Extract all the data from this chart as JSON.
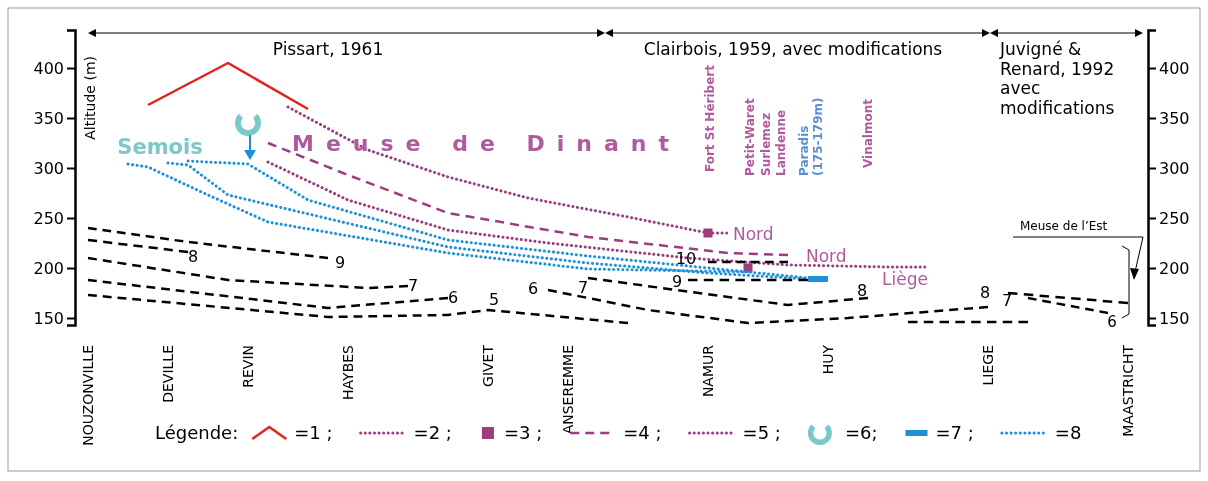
{
  "chart_data": {
    "type": "line",
    "ylabel": "Altitude (m)",
    "legend_title": "Légende:",
    "legend": "bottom",
    "grid": false,
    "categories": [
      "NOUZONVILLE",
      null,
      null,
      null,
      "DEVILLE",
      null,
      null,
      null,
      "REVIN",
      null,
      null,
      null,
      null,
      "HAYBES",
      null,
      null,
      null,
      null,
      null,
      null,
      "GIVET",
      null,
      null,
      null,
      "ANSEREMME",
      null,
      null,
      null,
      null,
      null,
      null,
      "NAMUR",
      null,
      null,
      null,
      null,
      null,
      "HUY",
      null,
      null,
      null,
      null,
      null,
      null,
      null,
      "LIEGE",
      null,
      null,
      null,
      null,
      null,
      null,
      "MAASTRICHT",
      null
    ],
    "ylim": [
      143,
      438
    ],
    "y2lim": [
      143,
      438
    ],
    "yticks": [
      150,
      200,
      250,
      300,
      350,
      400
    ],
    "y2ticks": [
      150,
      200,
      250,
      300,
      350,
      400
    ],
    "series": [
      {
        "name": "=1 ;",
        "color": "#e0241b",
        "line_style": "solid",
        "values": [
          null,
          null,
          null,
          363,
          null,
          null,
          null,
          405,
          null,
          null,
          null,
          359,
          null,
          null,
          null,
          null,
          null,
          null,
          null,
          null,
          null,
          null,
          null,
          null,
          null,
          null,
          null,
          null,
          null,
          null,
          null,
          null,
          null,
          null,
          null,
          null,
          null,
          null,
          null,
          null,
          null,
          null,
          null,
          null,
          null,
          null,
          null,
          null,
          null,
          null,
          null,
          null,
          null,
          null
        ]
      },
      {
        "name": "=2 ;",
        "color": "#9b3d7f",
        "line_style": "dotted",
        "values": [
          null,
          null,
          null,
          null,
          null,
          null,
          null,
          null,
          null,
          null,
          361,
          null,
          null,
          null,
          318,
          null,
          null,
          null,
          291,
          null,
          null,
          null,
          270,
          null,
          null,
          null,
          null,
          251,
          null,
          null,
          null,
          235,
          235,
          null,
          null,
          null,
          null,
          null,
          null,
          null,
          null,
          null,
          null,
          null,
          null,
          null,
          null,
          null,
          null,
          null,
          null,
          null,
          null,
          null
        ]
      },
      {
        "name": "=3 ;",
        "type": "scatter",
        "marker": "square",
        "color": "#9b3d7f",
        "values": [
          null,
          null,
          null,
          null,
          null,
          null,
          null,
          null,
          null,
          null,
          null,
          null,
          null,
          null,
          null,
          null,
          null,
          null,
          null,
          null,
          null,
          null,
          null,
          null,
          null,
          null,
          null,
          null,
          null,
          null,
          null,
          235,
          null,
          200,
          null,
          null,
          null,
          null,
          null,
          null,
          null,
          null,
          null,
          null,
          null,
          null,
          null,
          null,
          null,
          null,
          null,
          null,
          null,
          null
        ]
      },
      {
        "name": "=4 ;",
        "color": "#9b3d7f",
        "line_style": "dashed",
        "values": [
          null,
          null,
          null,
          null,
          null,
          null,
          null,
          null,
          null,
          325,
          null,
          null,
          null,
          293,
          null,
          null,
          null,
          null,
          255,
          null,
          null,
          null,
          null,
          null,
          null,
          231,
          null,
          null,
          null,
          null,
          null,
          null,
          215,
          null,
          null,
          213,
          null,
          null,
          null,
          null,
          null,
          null,
          null,
          null,
          null,
          null,
          null,
          null,
          null,
          null,
          null,
          null,
          null,
          null
        ]
      },
      {
        "name": "=5 ;",
        "color": "#9b3d7f",
        "line_style": "dotted",
        "values": [
          null,
          null,
          null,
          null,
          null,
          null,
          null,
          null,
          null,
          306,
          null,
          null,
          null,
          268,
          null,
          null,
          null,
          null,
          238,
          null,
          null,
          null,
          null,
          225,
          null,
          null,
          null,
          null,
          null,
          null,
          210,
          null,
          null,
          null,
          null,
          203,
          null,
          null,
          null,
          null,
          201,
          null,
          201,
          null,
          null,
          null,
          null,
          null,
          null,
          null,
          null,
          null,
          null,
          null
        ]
      },
      {
        "name": "=6;",
        "type": "scatter",
        "marker": "circle",
        "color": "#7cc8c8",
        "values": [
          null,
          null,
          null,
          null,
          null,
          null,
          null,
          null,
          345,
          null,
          null,
          null,
          null,
          null,
          null,
          null,
          null,
          null,
          null,
          null,
          null,
          null,
          null,
          null,
          null,
          null,
          null,
          null,
          null,
          null,
          null,
          null,
          null,
          null,
          null,
          null,
          null,
          null,
          null,
          null,
          null,
          null,
          null,
          null,
          null,
          null,
          null,
          null,
          null,
          null,
          null,
          null,
          null,
          null
        ]
      },
      {
        "name": "=7 ;",
        "color": "#1e90d8",
        "line_style": "solid",
        "values": [
          null,
          null,
          null,
          null,
          null,
          null,
          null,
          null,
          null,
          null,
          null,
          null,
          null,
          null,
          null,
          null,
          null,
          null,
          null,
          null,
          null,
          null,
          null,
          null,
          null,
          null,
          null,
          null,
          null,
          null,
          null,
          null,
          null,
          null,
          null,
          null,
          189,
          189,
          null,
          null,
          null,
          null,
          null,
          null,
          null,
          null,
          null,
          null,
          null,
          null,
          null,
          null,
          null,
          null
        ]
      },
      {
        "name": "=8",
        "color": "#1e90d8",
        "line_style": "dotted",
        "values": [
          null,
          null,
          null,
          null,
          null,
          307,
          null,
          null,
          304,
          null,
          null,
          268,
          null,
          null,
          null,
          null,
          null,
          null,
          228,
          null,
          null,
          null,
          null,
          null,
          null,
          212,
          null,
          null,
          null,
          null,
          null,
          200,
          null,
          null,
          null,
          null,
          190,
          null,
          null,
          null,
          null,
          null,
          null,
          null,
          null,
          null,
          null,
          null,
          null,
          null,
          null,
          null,
          null,
          null
        ]
      },
      {
        "color": "#1e90d8",
        "line_style": "dotted",
        "values": [
          null,
          null,
          null,
          null,
          305,
          303,
          null,
          273,
          null,
          null,
          null,
          null,
          null,
          null,
          null,
          null,
          null,
          null,
          221,
          null,
          null,
          null,
          null,
          null,
          null,
          205,
          null,
          null,
          null,
          null,
          null,
          195,
          null,
          null,
          null,
          null,
          189,
          null,
          null,
          null,
          null,
          null,
          null,
          null,
          null,
          null,
          null,
          null,
          null,
          null,
          null,
          null,
          null,
          null
        ]
      },
      {
        "color": "#1e90d8",
        "line_style": "dotted",
        "values": [
          null,
          null,
          304,
          301,
          null,
          null,
          273,
          null,
          null,
          246,
          null,
          null,
          null,
          null,
          null,
          null,
          null,
          null,
          215,
          null,
          null,
          null,
          null,
          null,
          null,
          199,
          null,
          null,
          null,
          null,
          null,
          null,
          null,
          196,
          null,
          null,
          null,
          null,
          null,
          null,
          null,
          null,
          null,
          null,
          null,
          null,
          null,
          null,
          null,
          null,
          null,
          null,
          null,
          null
        ]
      },
      {
        "color": "#000000",
        "line_style": "dashed",
        "values": [
          240,
          null,
          null,
          null,
          null,
          226,
          null,
          null,
          null,
          null,
          null,
          null,
          210,
          null,
          null,
          null,
          null,
          null,
          null,
          null,
          null,
          null,
          null,
          null,
          null,
          null,
          null,
          null,
          null,
          null,
          null,
          null,
          null,
          null,
          null,
          null,
          null,
          null,
          null,
          null,
          null,
          null,
          null,
          null,
          null,
          null,
          null,
          null,
          null,
          null,
          null,
          null,
          null,
          null
        ]
      },
      {
        "color": "#000000",
        "line_style": "dashed",
        "values": [
          228,
          null,
          null,
          null,
          null,
          216,
          null,
          null,
          null,
          null,
          null,
          null,
          null,
          null,
          null,
          null,
          null,
          null,
          null,
          null,
          null,
          null,
          null,
          null,
          null,
          null,
          null,
          null,
          null,
          null,
          null,
          null,
          null,
          null,
          null,
          null,
          null,
          null,
          null,
          null,
          null,
          null,
          null,
          null,
          null,
          null,
          null,
          null,
          null,
          null,
          null,
          null,
          null,
          null
        ]
      },
      {
        "color": "#000000",
        "line_style": "dashed",
        "values": [
          210,
          null,
          null,
          null,
          null,
          null,
          null,
          188,
          null,
          null,
          null,
          null,
          null,
          null,
          180,
          null,
          182,
          null,
          null,
          null,
          null,
          null,
          null,
          null,
          null,
          null,
          null,
          null,
          null,
          null,
          null,
          null,
          null,
          null,
          null,
          null,
          null,
          null,
          null,
          null,
          null,
          null,
          null,
          null,
          null,
          null,
          null,
          null,
          null,
          null,
          null,
          null,
          null,
          null
        ]
      },
      {
        "color": "#000000",
        "line_style": "dashed",
        "values": [
          188,
          null,
          null,
          null,
          null,
          null,
          null,
          null,
          null,
          null,
          null,
          null,
          160,
          null,
          null,
          null,
          null,
          null,
          170,
          null,
          null,
          null,
          null,
          null,
          null,
          null,
          null,
          null,
          null,
          null,
          null,
          null,
          null,
          null,
          null,
          null,
          null,
          null,
          null,
          null,
          null,
          null,
          null,
          null,
          null,
          null,
          null,
          null,
          null,
          null,
          null,
          null,
          null,
          null
        ]
      },
      {
        "color": "#000000",
        "line_style": "dashed",
        "values": [
          173,
          null,
          null,
          null,
          null,
          null,
          null,
          null,
          null,
          null,
          null,
          null,
          151,
          null,
          null,
          null,
          null,
          null,
          153,
          null,
          158,
          null,
          null,
          null,
          null,
          null,
          null,
          145,
          null,
          null,
          null,
          null,
          null,
          null,
          null,
          null,
          null,
          null,
          null,
          null,
          null,
          null,
          null,
          null,
          null,
          null,
          null,
          null,
          null,
          null,
          null,
          null,
          null,
          null
        ]
      },
      {
        "color": "#000000",
        "line_style": "dashed",
        "values": [
          null,
          null,
          null,
          null,
          null,
          null,
          null,
          null,
          null,
          null,
          null,
          null,
          null,
          null,
          null,
          null,
          null,
          null,
          null,
          null,
          null,
          null,
          null,
          178,
          null,
          null,
          null,
          null,
          158,
          null,
          null,
          null,
          null,
          145,
          null,
          null,
          null,
          null,
          150,
          null,
          null,
          null,
          null,
          null,
          null,
          161,
          null,
          null,
          null,
          null,
          null,
          null,
          null,
          null
        ]
      },
      {
        "color": "#000000",
        "line_style": "dashed",
        "values": [
          null,
          null,
          null,
          null,
          null,
          null,
          null,
          null,
          null,
          null,
          null,
          null,
          null,
          null,
          null,
          null,
          null,
          null,
          null,
          null,
          null,
          null,
          null,
          null,
          null,
          190,
          null,
          null,
          null,
          null,
          null,
          null,
          171,
          null,
          null,
          163,
          null,
          null,
          null,
          170,
          null,
          null,
          null,
          null,
          null,
          null,
          null,
          null,
          null,
          null,
          null,
          null,
          null,
          null
        ]
      },
      {
        "color": "#000000",
        "line_style": "dashed",
        "values": [
          null,
          null,
          null,
          null,
          null,
          null,
          null,
          null,
          null,
          null,
          null,
          null,
          null,
          null,
          null,
          null,
          null,
          null,
          null,
          null,
          null,
          null,
          null,
          null,
          null,
          null,
          null,
          null,
          null,
          null,
          188,
          null,
          null,
          null,
          null,
          null,
          188,
          null,
          null,
          null,
          null,
          null,
          null,
          null,
          null,
          null,
          null,
          null,
          null,
          null,
          null,
          null,
          null,
          null
        ]
      },
      {
        "color": "#000000",
        "line_style": "dashed",
        "values": [
          null,
          null,
          null,
          null,
          null,
          null,
          null,
          null,
          null,
          null,
          null,
          null,
          null,
          null,
          null,
          null,
          null,
          null,
          null,
          null,
          null,
          null,
          null,
          null,
          null,
          null,
          null,
          null,
          null,
          null,
          null,
          206,
          null,
          null,
          null,
          206,
          null,
          null,
          null,
          null,
          null,
          null,
          null,
          null,
          null,
          null,
          null,
          null,
          null,
          null,
          null,
          null,
          null,
          null
        ]
      },
      {
        "color": "#000000",
        "line_style": "dashed",
        "values": [
          null,
          null,
          null,
          null,
          null,
          null,
          null,
          null,
          null,
          null,
          null,
          null,
          null,
          null,
          null,
          null,
          null,
          null,
          null,
          null,
          null,
          null,
          null,
          null,
          null,
          null,
          null,
          null,
          null,
          null,
          null,
          null,
          null,
          null,
          null,
          null,
          null,
          null,
          null,
          null,
          null,
          null,
          null,
          null,
          null,
          null,
          175,
          null,
          null,
          null,
          null,
          null,
          165,
          null
        ]
      },
      {
        "color": "#000000",
        "line_style": "dashed",
        "values": [
          null,
          null,
          null,
          null,
          null,
          null,
          null,
          null,
          null,
          null,
          null,
          null,
          null,
          null,
          null,
          null,
          null,
          null,
          null,
          null,
          null,
          null,
          null,
          null,
          null,
          null,
          null,
          null,
          null,
          null,
          null,
          null,
          null,
          null,
          null,
          null,
          null,
          null,
          null,
          null,
          null,
          null,
          null,
          null,
          null,
          null,
          null,
          170,
          null,
          null,
          null,
          155,
          null,
          null
        ]
      },
      {
        "color": "#000000",
        "line_style": "dashed",
        "values": [
          null,
          null,
          null,
          null,
          null,
          null,
          null,
          null,
          null,
          null,
          null,
          null,
          null,
          null,
          null,
          null,
          null,
          null,
          null,
          null,
          null,
          null,
          null,
          null,
          null,
          null,
          null,
          null,
          null,
          null,
          null,
          null,
          null,
          null,
          null,
          null,
          null,
          null,
          null,
          null,
          null,
          146,
          null,
          null,
          null,
          null,
          null,
          146,
          null,
          null,
          null,
          null,
          null,
          null
        ]
      }
    ],
    "annotations": [
      "Pissart, 1961",
      "Clairbois, 1959, avec modifications",
      "Juvigné & Renard, 1992 avec modifications",
      "Semois",
      "Meuse de Dinant",
      "Fort St Héribert",
      "Petit-Waret",
      "Surlemez",
      "Landenne",
      "Paradis (175-179m)",
      "Vinalmont",
      "Nord",
      "Nord",
      "Liège",
      "Meuse de l’Est",
      "8",
      "9",
      "7",
      "6",
      "5",
      "6",
      "7",
      "10",
      "9",
      "8",
      "8",
      "7",
      "6"
    ]
  }
}
